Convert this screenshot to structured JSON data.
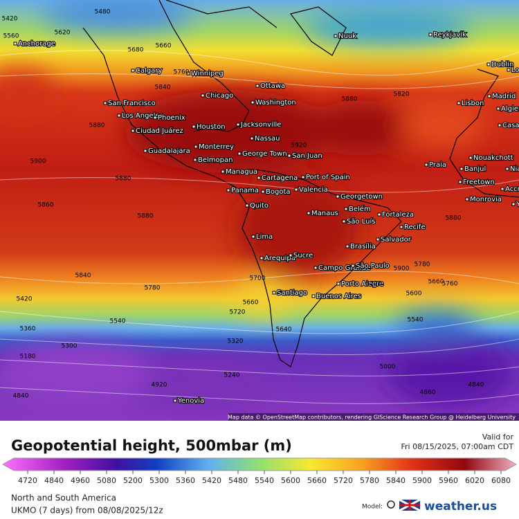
{
  "map": {
    "cities": [
      "Anchorage",
      "Calgary",
      "Winnipeg",
      "Reykjavik",
      "Nuuk",
      "Dublin",
      "London",
      "Chicago",
      "Ottawa",
      "San Francisco",
      "Washington",
      "Los Angeles",
      "Phoenix",
      "Madrid",
      "Lisbon",
      "Algiers",
      "Ciudad Juárez",
      "Houston",
      "Jacksonville",
      "Casablanca",
      "Nassau",
      "Monterrey",
      "Guadalajara",
      "George Town",
      "San Juan",
      "Nouakchott",
      "Belmopan",
      "Praia",
      "Banjul",
      "Niamey",
      "Managua",
      "Cartagena",
      "Port of Spain",
      "Panama",
      "Bogota",
      "Valencia",
      "Freetown",
      "Accra",
      "Georgetown",
      "Monrovia",
      "Quito",
      "Belém",
      "Fortaleza",
      "Manaus",
      "São Luís",
      "Recife",
      "Lima",
      "Salvador",
      "Brasília",
      "Arequipa",
      "Sucre",
      "Campo Grande",
      "São Paulo",
      "Porto Alegre",
      "Santiago",
      "Buenos Aires",
      "Yenovia",
      "Yac"
    ],
    "contour_labels": [
      5420,
      5480,
      5560,
      5620,
      5680,
      5660,
      5760,
      5840,
      5880,
      5900,
      5920,
      5880,
      5860,
      5880,
      5840,
      5780,
      5700,
      5660,
      5720,
      5640,
      5540,
      5420,
      5360,
      5300,
      5180,
      4840,
      4920,
      5240,
      5320,
      5540,
      5600,
      5660,
      5720,
      5780,
      5760,
      5880,
      5900,
      5820,
      5880,
      4860,
      5000,
      4840
    ],
    "attribution": "Map data © OpenStreetMap contributors, rendering GIScience Research Group @ Heidelberg University"
  },
  "header": {
    "title": "Geopotential height, 500mbar (m)",
    "valid_label": "Valid for",
    "valid_time": "Fri 08/15/2025, 07:00am CDT"
  },
  "colorbar": {
    "ticks": [
      4720,
      4840,
      4960,
      5080,
      5200,
      5300,
      5360,
      5420,
      5480,
      5540,
      5600,
      5660,
      5720,
      5780,
      5840,
      5900,
      5960,
      6020,
      6080
    ]
  },
  "footer": {
    "region": "North and South America",
    "run": "UKMO (7 days) from 08/08/2025/12z",
    "model_label": "Model:",
    "brand": "weather.us"
  }
}
